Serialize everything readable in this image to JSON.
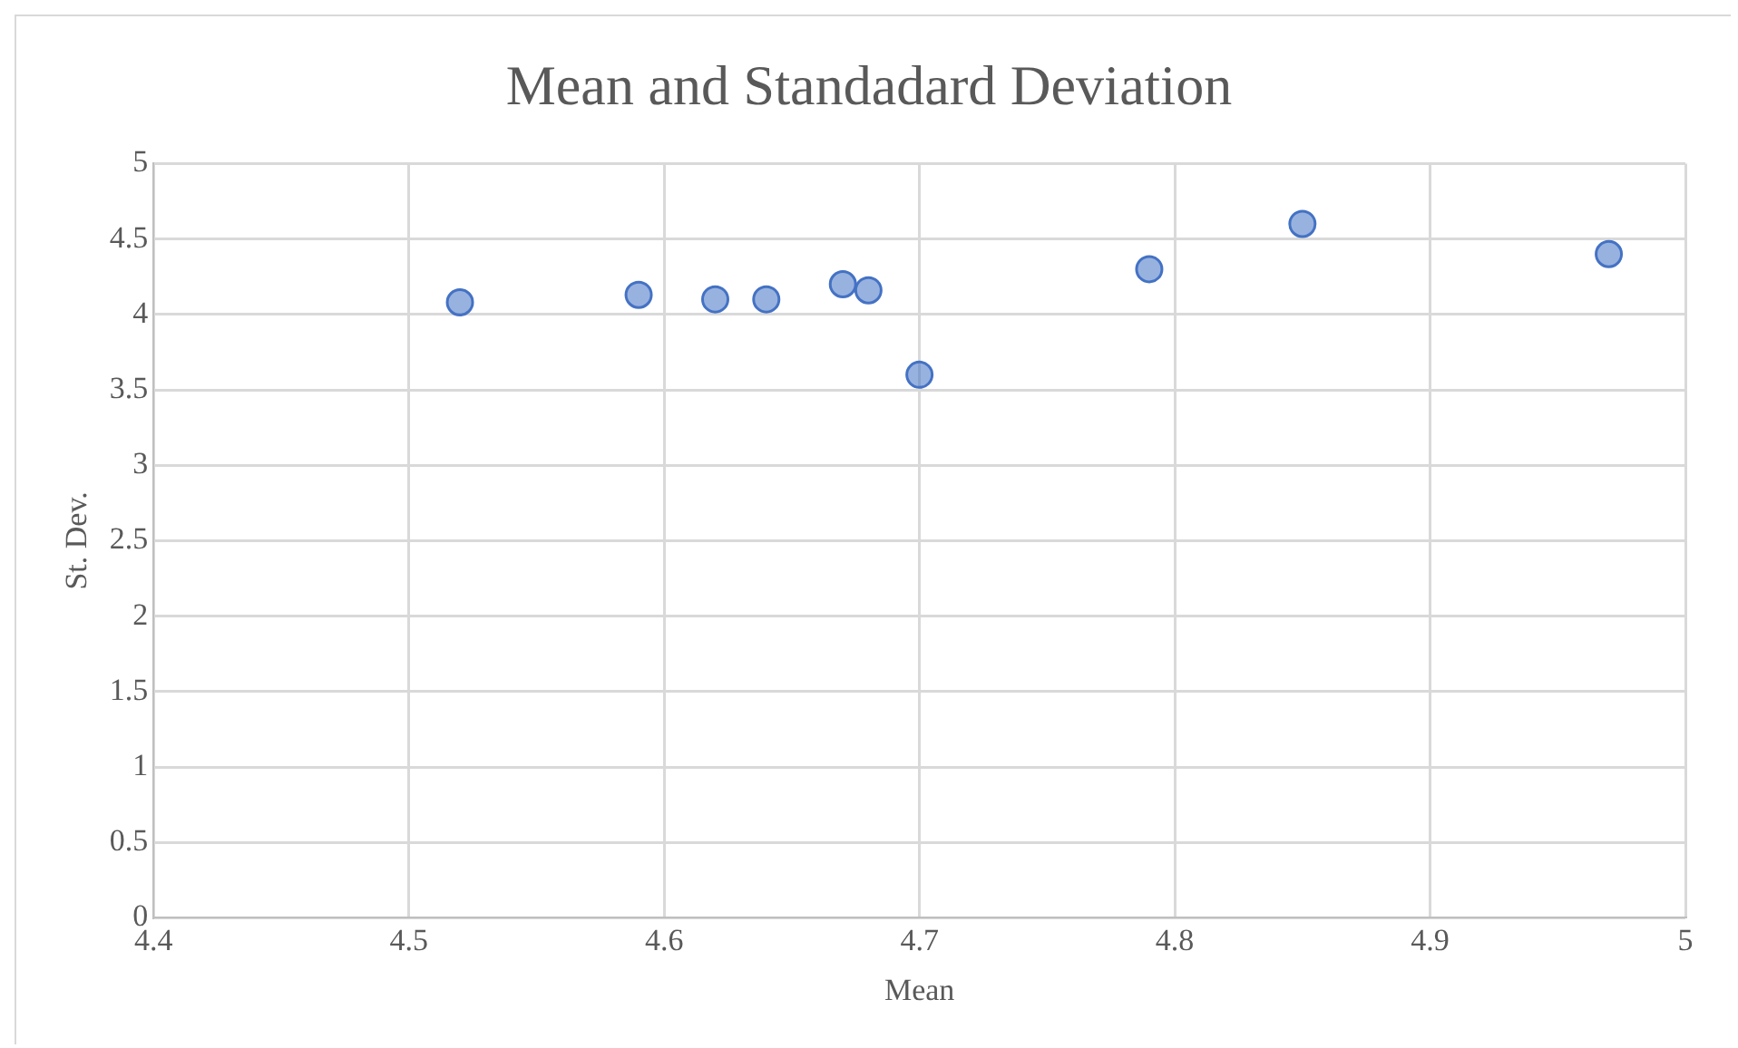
{
  "chart_data": {
    "type": "scatter",
    "title": "Mean and Standadard Deviation",
    "xlabel": "Mean",
    "ylabel": "St. Dev.",
    "x": [
      4.52,
      4.59,
      4.62,
      4.64,
      4.67,
      4.68,
      4.7,
      4.79,
      4.85,
      4.97
    ],
    "series": [
      {
        "color": "#4472c4",
        "values": [
          4.08,
          4.13,
          4.1,
          4.1,
          4.2,
          4.16,
          3.6,
          4.3,
          4.6,
          4.4
        ]
      }
    ],
    "xlim": [
      4.4,
      5
    ],
    "xticks": [
      4.4,
      4.5,
      4.6,
      4.7,
      4.8,
      4.9,
      5
    ],
    "ylim": [
      0,
      5
    ],
    "yticks": [
      0,
      0.5,
      1,
      1.5,
      2,
      2.5,
      3,
      3.5,
      4,
      4.5,
      5
    ],
    "grid": true,
    "legend": false,
    "marker": "circle"
  }
}
